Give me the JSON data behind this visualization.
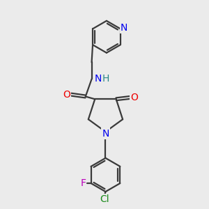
{
  "bg_color": "#ebebeb",
  "bond_color": "#3a3a3a",
  "bond_width": 1.6,
  "N_color": "#0000ee",
  "O_color": "#ee0000",
  "F_color": "#bb00bb",
  "Cl_color": "#1a8a1a",
  "H_color": "#2a8888",
  "figsize": [
    3.0,
    3.0
  ],
  "dpi": 100,
  "xlim": [
    0,
    10
  ],
  "ylim": [
    0,
    10
  ]
}
